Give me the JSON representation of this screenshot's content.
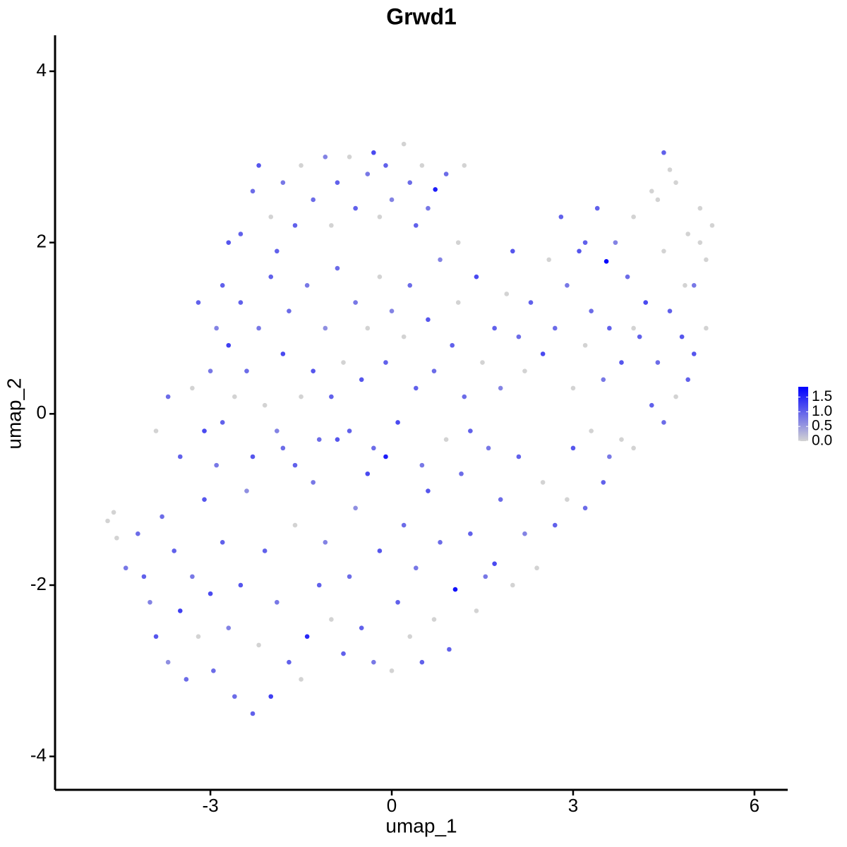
{
  "chart_data": {
    "type": "scatter",
    "title": "Grwd1",
    "x_label": "umap_1",
    "y_label": "umap_2",
    "xlim": [
      -5.57,
      6.55
    ],
    "ylim": [
      -4.39,
      4.42
    ],
    "xticks": [
      -3,
      0,
      3,
      6
    ],
    "yticks": [
      -4,
      -2,
      0,
      2,
      4
    ],
    "grid": false,
    "colorbar": {
      "lim": [
        0,
        1.85
      ],
      "low_color": "#d3d3d3",
      "high_color": "#0000ff",
      "ticks": [
        {
          "value": 0,
          "label": "0.0"
        },
        {
          "value": 0.5,
          "label": "0.5"
        },
        {
          "value": 1,
          "label": "1.0"
        },
        {
          "value": 1.5,
          "label": "1.5"
        }
      ]
    },
    "x": [
      -4.7,
      -4.6,
      -4.55,
      -4.4,
      -4.2,
      -4.1,
      -4.0,
      -3.9,
      -3.8,
      -3.7,
      -3.6,
      -3.5,
      -3.4,
      -3.3,
      -3.2,
      -3.1,
      -3.0,
      -2.95,
      -2.9,
      -2.8,
      -2.7,
      -2.6,
      -2.5,
      -2.4,
      -2.3,
      -2.2,
      -2.1,
      -2.0,
      -1.9,
      -1.8,
      -1.7,
      -1.6,
      -1.5,
      -1.4,
      -1.3,
      -1.2,
      -1.1,
      -1.0,
      -0.9,
      -0.8,
      -0.7,
      -0.6,
      -0.5,
      -0.4,
      -0.3,
      -0.2,
      -0.1,
      0.0,
      0.1,
      0.2,
      0.3,
      0.4,
      0.5,
      0.6,
      0.7,
      0.8,
      0.95,
      1.05,
      1.15,
      1.3,
      1.4,
      1.55,
      1.7,
      1.8,
      2.0,
      2.1,
      2.2,
      2.4,
      2.5,
      2.7,
      2.9,
      3.0,
      3.2,
      3.3,
      3.5,
      3.6,
      3.8,
      4.0,
      4.3,
      4.5,
      4.7,
      4.9,
      5.0,
      5.2,
      -3.9,
      -3.7,
      -3.5,
      -3.3,
      -3.1,
      -3.0,
      -2.9,
      -2.8,
      -2.7,
      -2.6,
      -2.5,
      -2.4,
      -2.3,
      -2.2,
      -2.1,
      -2.0,
      -1.9,
      -1.8,
      -1.7,
      -1.6,
      -1.5,
      -1.4,
      -1.3,
      -1.2,
      -1.1,
      -1.0,
      -0.9,
      -0.8,
      -0.7,
      -0.6,
      -0.5,
      -0.4,
      -0.3,
      -0.2,
      -0.1,
      0.0,
      0.1,
      0.2,
      0.3,
      0.4,
      0.5,
      0.6,
      0.7,
      0.8,
      0.9,
      1.0,
      1.1,
      1.2,
      1.3,
      1.4,
      1.5,
      1.6,
      1.7,
      1.8,
      1.9,
      2.0,
      2.1,
      2.2,
      2.3,
      2.5,
      2.6,
      2.7,
      2.8,
      2.9,
      3.0,
      3.1,
      3.2,
      3.3,
      3.4,
      3.5,
      3.55,
      3.6,
      3.7,
      3.8,
      3.9,
      4.0,
      4.1,
      4.2,
      4.3,
      4.4,
      4.5,
      4.6,
      4.7,
      4.8,
      4.9,
      5.0,
      5.1,
      5.2,
      5.3,
      4.5,
      4.6,
      4.4,
      4.85,
      5.1,
      4.0,
      3.2,
      -2.5,
      -2.3,
      -2.2,
      -2.0,
      -1.9,
      -1.8,
      -1.6,
      -1.5,
      -1.3,
      -1.1,
      -1.0,
      -0.9,
      -0.7,
      -0.6,
      -0.4,
      -0.3,
      -0.2,
      -0.1,
      0.0,
      0.2,
      0.3,
      0.4,
      0.5,
      0.6,
      0.72,
      0.9,
      1.1,
      1.2,
      -2.8,
      -2.7,
      -3.2
    ],
    "values": [
      -1.25,
      -1.15,
      -1.45,
      -1.8,
      -1.4,
      -1.9,
      -2.2,
      -2.6,
      -1.2,
      -2.9,
      -1.6,
      -2.3,
      -3.1,
      -1.9,
      -2.6,
      -1.0,
      -2.1,
      -3.0,
      -0.6,
      -1.5,
      -2.5,
      -3.3,
      -2.0,
      -0.9,
      -3.5,
      -2.7,
      -1.6,
      -3.3,
      -2.2,
      -0.4,
      -2.9,
      -1.3,
      -3.1,
      -2.6,
      -0.8,
      -2.0,
      -1.5,
      -2.4,
      -0.3,
      -2.8,
      -1.9,
      -1.1,
      -2.5,
      -0.7,
      -2.9,
      -1.6,
      -0.5,
      -3.0,
      -2.2,
      -1.3,
      -2.6,
      -1.8,
      -2.9,
      -0.9,
      -2.4,
      -1.5,
      -2.75,
      -2.05,
      -0.7,
      -1.4,
      -2.3,
      -1.9,
      -1.75,
      -1.0,
      -2.0,
      -0.5,
      -1.4,
      -1.8,
      -0.8,
      -1.3,
      -1.0,
      -0.4,
      -1.1,
      -0.2,
      -0.8,
      -0.5,
      -0.3,
      -0.4,
      0.1,
      -0.1,
      0.2,
      0.4,
      0.7,
      1.0,
      -0.2,
      0.2,
      -0.5,
      0.3,
      -0.2,
      0.5,
      1.0,
      -0.1,
      0.8,
      0.2,
      1.3,
      0.5,
      -0.5,
      1.0,
      0.1,
      1.6,
      -0.2,
      0.7,
      1.2,
      -0.6,
      0.2,
      1.5,
      0.5,
      -0.3,
      1.0,
      0.2,
      1.7,
      0.6,
      -0.2,
      1.3,
      0.4,
      1.0,
      -0.4,
      1.6,
      0.6,
      1.2,
      -0.1,
      0.9,
      1.5,
      0.3,
      -0.6,
      1.1,
      0.5,
      1.8,
      -0.3,
      0.8,
      1.3,
      0.2,
      -0.2,
      1.6,
      0.6,
      -0.4,
      1.0,
      0.3,
      1.4,
      1.9,
      0.9,
      0.5,
      1.3,
      0.7,
      1.8,
      1.0,
      2.3,
      1.5,
      0.3,
      1.9,
      0.8,
      1.2,
      2.4,
      0.4,
      1.78,
      1.0,
      2.0,
      0.6,
      1.6,
      2.3,
      0.9,
      1.3,
      2.6,
      0.6,
      1.9,
      1.2,
      2.7,
      0.9,
      2.1,
      1.5,
      2.4,
      1.8,
      2.2,
      3.05,
      2.85,
      2.5,
      1.5,
      2.0,
      1.0,
      2.0,
      2.1,
      2.6,
      2.9,
      2.3,
      1.9,
      2.7,
      2.2,
      2.9,
      2.5,
      3.0,
      2.2,
      2.7,
      3.0,
      2.4,
      2.8,
      3.05,
      2.3,
      2.9,
      2.5,
      3.15,
      2.7,
      2.2,
      2.9,
      2.4,
      2.62,
      2.8,
      2.0,
      2.9,
      1.5,
      2.0,
      1.3
    ],
    "expression": [
      0,
      0,
      0,
      0.8,
      0.9,
      1.0,
      0.7,
      1.1,
      0.9,
      0.6,
      1.0,
      1.3,
      0.9,
      0.8,
      0,
      1.1,
      1.2,
      0.9,
      0.8,
      1.0,
      0.7,
      0.9,
      1.1,
      0.6,
      1.0,
      0,
      1.0,
      1.3,
      0.8,
      0.9,
      1.0,
      0,
      0,
      1.5,
      0.8,
      1.0,
      0.7,
      0,
      1.1,
      1.0,
      0.9,
      0.6,
      1.0,
      1.2,
      0.8,
      1.1,
      1.6,
      0,
      1.0,
      0.9,
      0,
      0.8,
      1.0,
      1.1,
      0,
      0.9,
      1.0,
      1.7,
      0.9,
      1.0,
      0,
      0.8,
      1.2,
      0.9,
      0,
      1.0,
      0.7,
      0,
      0,
      1.0,
      0,
      1.1,
      0.9,
      0,
      1.0,
      0.8,
      0,
      0,
      1.0,
      0.9,
      0,
      1.0,
      1.1,
      0,
      0,
      0.9,
      1.0,
      0,
      1.2,
      0.8,
      0.7,
      1.0,
      1.3,
      0,
      1.0,
      0.9,
      1.1,
      0.8,
      0,
      1.0,
      0.7,
      1.2,
      0.9,
      1.0,
      0,
      0.8,
      1.1,
      0.9,
      0.6,
      1.0,
      0.9,
      0,
      1.0,
      0.8,
      1.1,
      0,
      0.9,
      0,
      1.0,
      0.7,
      1.2,
      0,
      0.9,
      1.0,
      0.8,
      1.1,
      0.9,
      0.7,
      0,
      1.0,
      0,
      0.9,
      1.0,
      1.2,
      0,
      0.8,
      1.0,
      0.7,
      0,
      1.1,
      0.9,
      0,
      1.0,
      1.2,
      0,
      0.9,
      1.0,
      0.8,
      0,
      1.1,
      0,
      0.9,
      1.0,
      0.8,
      1.8,
      1.0,
      0.7,
      1.1,
      0.9,
      0,
      1.0,
      1.2,
      0,
      0.9,
      0,
      1.0,
      0,
      1.1,
      0,
      0.8,
      0,
      0,
      0,
      1.0,
      0,
      0,
      0,
      0,
      0,
      1.0,
      1.0,
      0.9,
      1.1,
      0,
      1.0,
      0.8,
      1.0,
      0,
      0.9,
      0.7,
      0,
      1.0,
      0,
      1.0,
      0.8,
      1.2,
      0,
      1.0,
      0.7,
      0,
      0.9,
      1.0,
      0,
      0.8,
      1.6,
      0.9,
      0,
      0,
      1.0,
      1.1,
      1.0
    ]
  }
}
